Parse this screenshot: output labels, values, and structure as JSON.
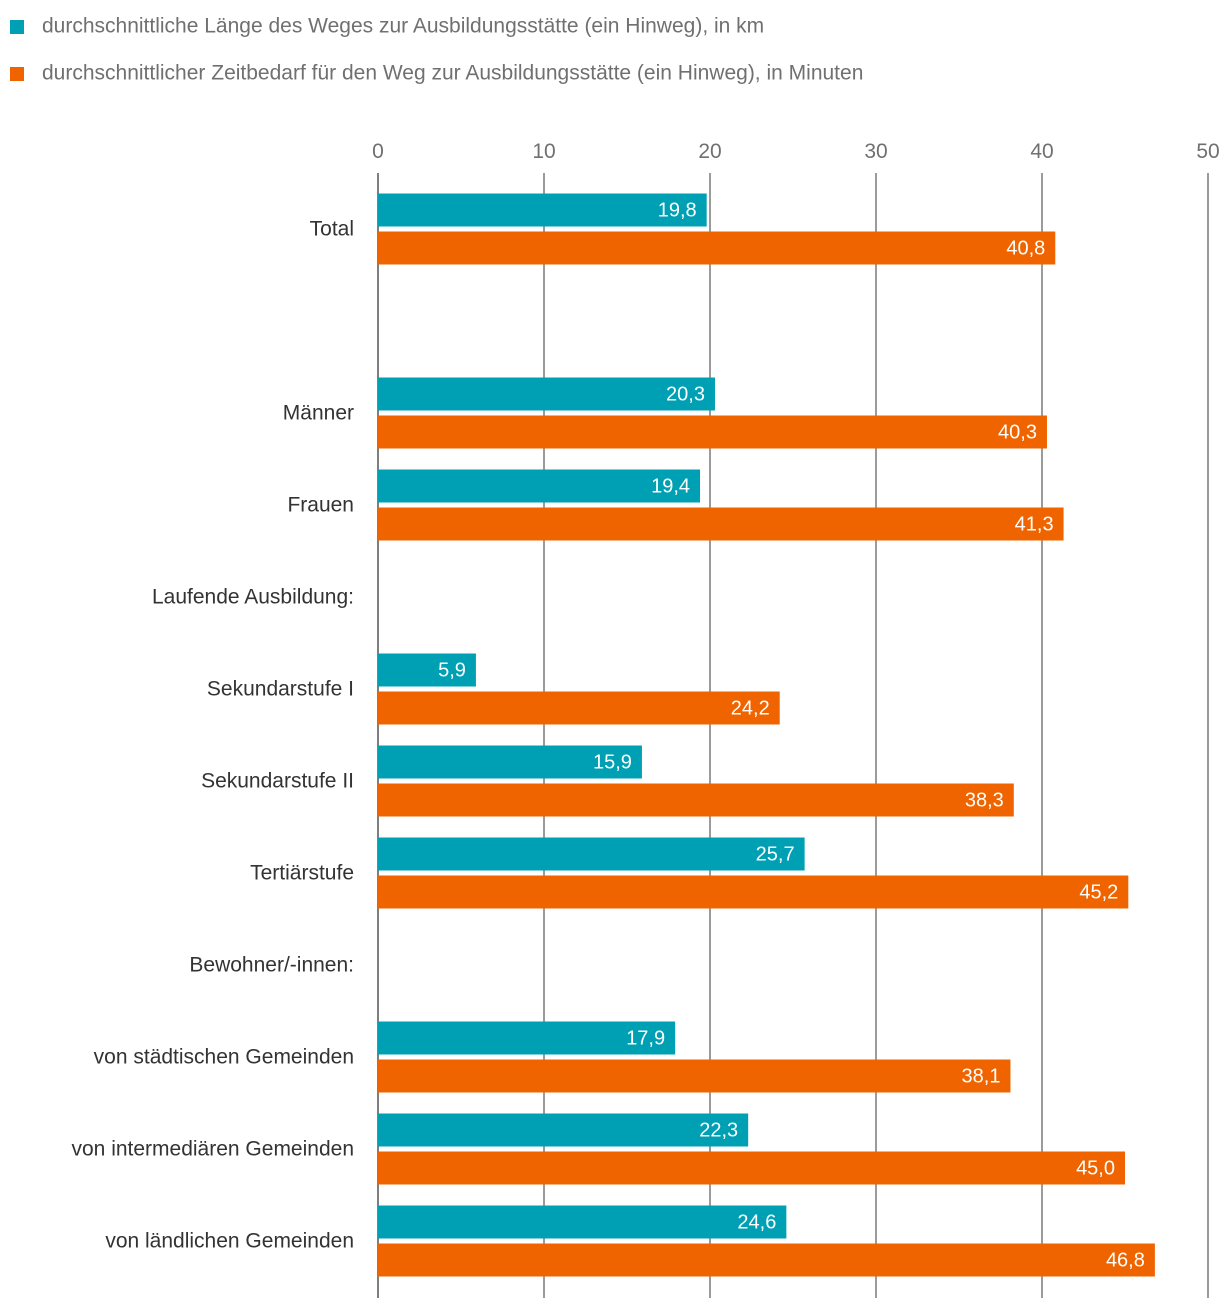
{
  "chart_data": {
    "type": "bar",
    "orientation": "horizontal",
    "xlim": [
      0,
      50
    ],
    "xticks": [
      0,
      10,
      20,
      30,
      40,
      50
    ],
    "tick_labels": [
      "0",
      "10",
      "20",
      "30",
      "40",
      "50"
    ],
    "tick_position": "top",
    "legend_position": "top-left",
    "grid": true,
    "categories": [
      "Total",
      "",
      "Männer",
      "Frauen",
      "Laufende Ausbildung:",
      "Sekundarstufe I",
      "Sekundarstufe II",
      "Tertiärstufe",
      "Bewohner/-innen:",
      "von städtischen Gemeinden",
      "von intermediären Gemeinden",
      "von ländlichen Gemeinden"
    ],
    "series": [
      {
        "name": "durchschnittliche Länge des Weges zur Ausbildungsstätte (ein Hinweg), in km",
        "color": "#00A0B4",
        "values": [
          19.8,
          null,
          20.3,
          19.4,
          null,
          5.9,
          15.9,
          25.7,
          null,
          17.9,
          22.3,
          24.6
        ],
        "labels": [
          "19,8",
          "",
          "20,3",
          "19,4",
          "",
          "5,9",
          "15,9",
          "25,7",
          "",
          "17,9",
          "22,3",
          "24,6"
        ]
      },
      {
        "name": "durchschnittlicher Zeitbedarf für den Weg zur Ausbildungsstätte (ein Hinweg), in Minuten",
        "color": "#F06400",
        "values": [
          40.8,
          null,
          40.3,
          41.3,
          null,
          24.2,
          38.3,
          45.2,
          null,
          38.1,
          45.0,
          46.8
        ],
        "labels": [
          "40,8",
          "",
          "40,3",
          "41,3",
          "",
          "24,2",
          "38,3",
          "45,2",
          "",
          "38,1",
          "45,0",
          "46,8"
        ]
      }
    ]
  }
}
